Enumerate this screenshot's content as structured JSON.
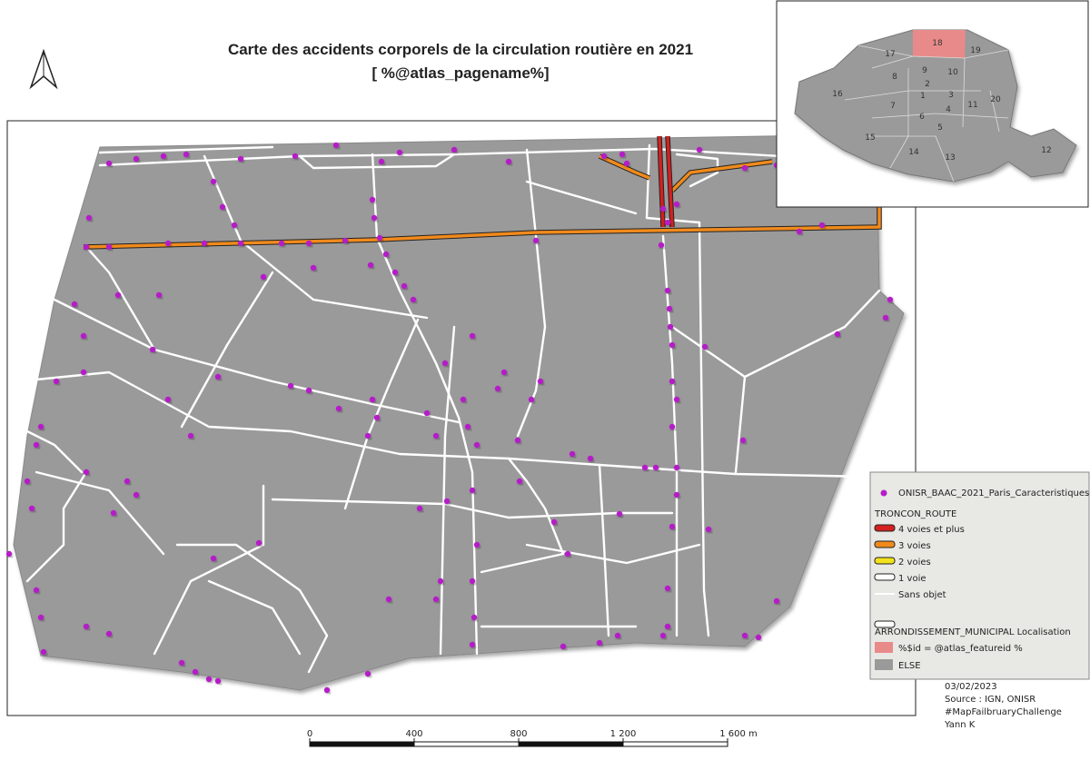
{
  "title": {
    "line1": "Carte des accidents corporels de la circulation routière en 2021",
    "line2": "[ %@atlas_pagename%]"
  },
  "inset": {
    "labels": [
      "1",
      "2",
      "3",
      "4",
      "5",
      "6",
      "7",
      "8",
      "9",
      "10",
      "11",
      "12",
      "13",
      "14",
      "15",
      "16",
      "17",
      "18",
      "19",
      "20"
    ]
  },
  "legend": {
    "points": "ONISR_BAAC_2021_Paris_Caracteristiques",
    "roads_title": "TRONCON_ROUTE",
    "roads": [
      "4 voies et plus",
      "3 voies",
      "2 voies",
      "1 voie",
      "Sans objet"
    ],
    "districts_title": "ARRONDISSEMENT_MUNICIPAL Localisation",
    "districts": [
      "%$id =  @atlas_featureid %",
      "ELSE"
    ]
  },
  "scale": {
    "labels": [
      "0",
      "400",
      "800",
      "1 200",
      "1 600 m"
    ]
  },
  "credits": {
    "date": "03/02/2023",
    "lines": [
      "Source : IGN, ONISR",
      "#MapFailbruaryChallenge",
      "Yann K"
    ]
  }
}
